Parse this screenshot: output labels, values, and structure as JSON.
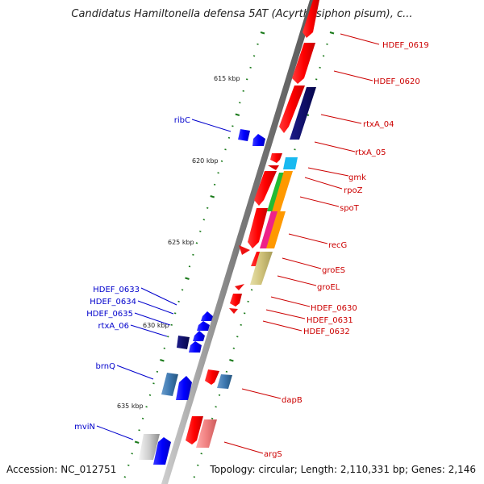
{
  "title": "Candidatus Hamiltonella defensa 5AT (Acyrthosiphon pisum), c...",
  "footer": {
    "accession": "Accession: NC_012751",
    "summary": "Topology: circular; Length: 2,110,331 bp; Genes: 2,146"
  },
  "scale_labels": [
    "615 kbp",
    "620 kbp",
    "625 kbp",
    "630 kbp",
    "635 kbp"
  ],
  "gene_labels": {
    "right": [
      "HDEF_0619",
      "HDEF_0620",
      "rtxA_04",
      "rtxA_05",
      "gmk",
      "rpoZ",
      "spoT",
      "recG",
      "groES",
      "groEL",
      "HDEF_0630",
      "HDEF_0631",
      "HDEF_0632",
      "dapB",
      "argS"
    ],
    "left": [
      "ribC",
      "HDEF_0633",
      "HDEF_0634",
      "HDEF_0635",
      "rtxA_06",
      "brnQ",
      "mviN"
    ]
  },
  "colors": {
    "forward_gene": "#ff0000",
    "reverse_gene": "#0000ff",
    "forward_label": "#cc0000",
    "reverse_label": "#0000cc",
    "backbone": "#888888",
    "tick": "#1a7a1a"
  }
}
